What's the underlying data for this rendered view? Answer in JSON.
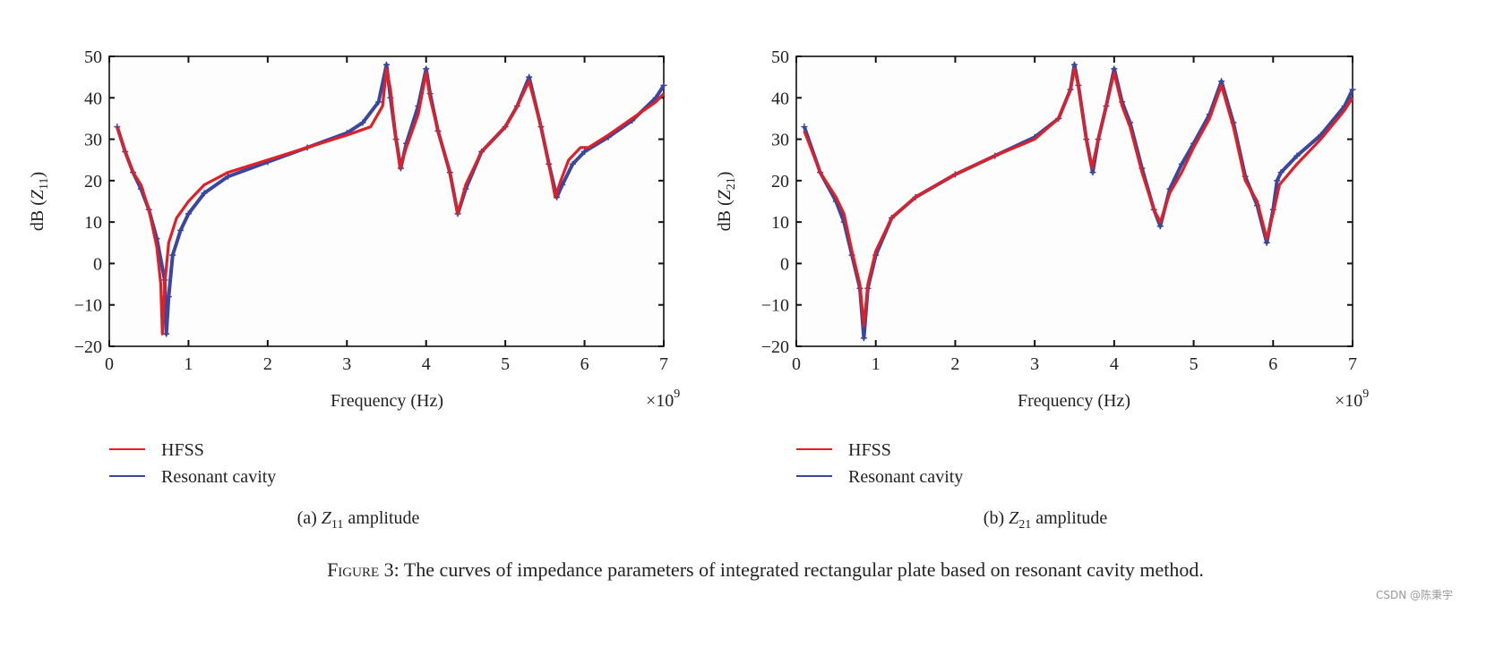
{
  "colors": {
    "hfss": "#e31f26",
    "cavity": "#3a47a0",
    "axis": "#111111"
  },
  "figure_caption": {
    "label": "Figure 3",
    "text": ": The curves of impedance parameters of integrated rectangular plate based on resonant cavity method."
  },
  "watermark": "CSDN @陈秉宇",
  "chart_data": [
    {
      "type": "line",
      "subcaption": {
        "tag": "(a)",
        "symbol": "Z",
        "sub": "11",
        "text": "amplitude"
      },
      "xlabel": "Frequency (Hz)",
      "x_multiplier": "×10",
      "x_multiplier_exp": "9",
      "ylabel": {
        "prefix": "dB (",
        "symbol": "Z",
        "sub": "11",
        "suffix": ")"
      },
      "xlim": [
        0,
        7
      ],
      "ylim": [
        -20,
        50
      ],
      "xticks": [
        "0",
        "1",
        "2",
        "3",
        "4",
        "5",
        "6",
        "7"
      ],
      "yticks": [
        "−20",
        "−10",
        "0",
        "10",
        "20",
        "30",
        "40",
        "50"
      ],
      "grid": false,
      "legend_position": "below",
      "series": [
        {
          "name": "HFSS",
          "marker": "none",
          "x": [
            0.1,
            0.2,
            0.3,
            0.4,
            0.5,
            0.6,
            0.65,
            0.67,
            0.7,
            0.75,
            0.85,
            1,
            1.2,
            1.5,
            2,
            2.5,
            3,
            3.3,
            3.45,
            3.5,
            3.55,
            3.62,
            3.67,
            3.75,
            3.9,
            4.0,
            4.05,
            4.15,
            4.3,
            4.4,
            4.5,
            4.7,
            5.0,
            5.15,
            5.3,
            5.45,
            5.55,
            5.63,
            5.7,
            5.8,
            5.95,
            6.05,
            6.3,
            6.6,
            6.9,
            7.0
          ],
          "y": [
            33,
            27,
            22,
            19,
            13,
            4,
            -5,
            -17,
            -5,
            5,
            11,
            15,
            19,
            22,
            25,
            28,
            31,
            33,
            38,
            47,
            42,
            30,
            23,
            28,
            36,
            46,
            40,
            32,
            22,
            12,
            19,
            27,
            33,
            38,
            44,
            33,
            24,
            16,
            20,
            25,
            28,
            28,
            31,
            35,
            39,
            41
          ]
        },
        {
          "name": "Resonant cavity",
          "marker": "plus",
          "x": [
            0.1,
            0.2,
            0.3,
            0.4,
            0.5,
            0.6,
            0.7,
            0.72,
            0.75,
            0.8,
            0.9,
            1,
            1.2,
            1.5,
            2,
            2.5,
            3,
            3.2,
            3.4,
            3.5,
            3.55,
            3.62,
            3.68,
            3.75,
            3.9,
            4.0,
            4.05,
            4.15,
            4.3,
            4.4,
            4.5,
            4.7,
            5.0,
            5.15,
            5.3,
            5.45,
            5.55,
            5.65,
            5.72,
            5.85,
            6.0,
            6.3,
            6.6,
            6.9,
            7.0
          ],
          "y": [
            33,
            27,
            22,
            18,
            13,
            6,
            -4,
            -17,
            -8,
            2,
            8,
            12,
            17,
            21,
            24.5,
            28,
            31.5,
            34,
            39,
            48,
            40,
            30,
            23,
            29,
            38,
            47,
            41,
            32,
            22,
            12,
            18,
            27,
            33,
            38,
            45,
            33,
            24,
            16,
            19,
            24,
            27,
            30.5,
            34.5,
            40,
            43
          ]
        }
      ]
    },
    {
      "type": "line",
      "subcaption": {
        "tag": "(b)",
        "symbol": "Z",
        "sub": "21",
        "text": "amplitude"
      },
      "xlabel": "Frequency (Hz)",
      "x_multiplier": "×10",
      "x_multiplier_exp": "9",
      "ylabel": {
        "prefix": "dB (",
        "symbol": "Z",
        "sub": "21",
        "suffix": ")"
      },
      "xlim": [
        0,
        7
      ],
      "ylim": [
        -20,
        50
      ],
      "xticks": [
        "0",
        "1",
        "2",
        "3",
        "4",
        "5",
        "6",
        "7"
      ],
      "yticks": [
        "−20",
        "−10",
        "0",
        "10",
        "20",
        "30",
        "40",
        "50"
      ],
      "grid": false,
      "legend_position": "below",
      "series": [
        {
          "name": "HFSS",
          "marker": "none",
          "x": [
            0.1,
            0.3,
            0.5,
            0.6,
            0.7,
            0.8,
            0.85,
            0.9,
            1,
            1.2,
            1.5,
            2,
            2.5,
            3,
            3.3,
            3.45,
            3.5,
            3.55,
            3.65,
            3.72,
            3.8,
            3.9,
            4.0,
            4.1,
            4.2,
            4.35,
            4.5,
            4.58,
            4.7,
            4.85,
            5.0,
            5.2,
            5.35,
            5.5,
            5.65,
            5.8,
            5.92,
            6.0,
            6.08,
            6.3,
            6.6,
            6.9,
            7.0
          ],
          "y": [
            32,
            22,
            16,
            12,
            3,
            -5,
            -15,
            -5,
            3,
            11,
            16,
            21.5,
            26,
            30,
            35,
            42,
            47,
            43,
            30,
            23,
            30,
            38,
            46,
            38,
            33,
            22,
            13,
            10,
            17,
            22,
            28,
            35,
            43,
            33,
            20,
            15,
            6,
            12,
            19,
            24,
            30,
            37,
            40
          ]
        },
        {
          "name": "Resonant cavity",
          "marker": "plus",
          "x": [
            0.1,
            0.3,
            0.5,
            0.6,
            0.7,
            0.8,
            0.85,
            0.9,
            1,
            1.2,
            1.5,
            2,
            2.5,
            3,
            3.3,
            3.45,
            3.5,
            3.55,
            3.65,
            3.73,
            3.8,
            3.9,
            4.0,
            4.1,
            4.2,
            4.35,
            4.5,
            4.58,
            4.7,
            4.85,
            5.0,
            5.2,
            5.35,
            5.5,
            5.65,
            5.8,
            5.92,
            6.0,
            6.05,
            6.1,
            6.3,
            6.6,
            6.9,
            7.0
          ],
          "y": [
            33,
            22,
            15,
            10,
            2,
            -6,
            -18,
            -6,
            2,
            11,
            16,
            21.5,
            26,
            30.5,
            35,
            42,
            48,
            43,
            30,
            22,
            30,
            38,
            47,
            39,
            34,
            23,
            13,
            9,
            18,
            24,
            29,
            36,
            44,
            34,
            21,
            14,
            5,
            13,
            20,
            22,
            26,
            31,
            38,
            42
          ]
        }
      ]
    }
  ]
}
